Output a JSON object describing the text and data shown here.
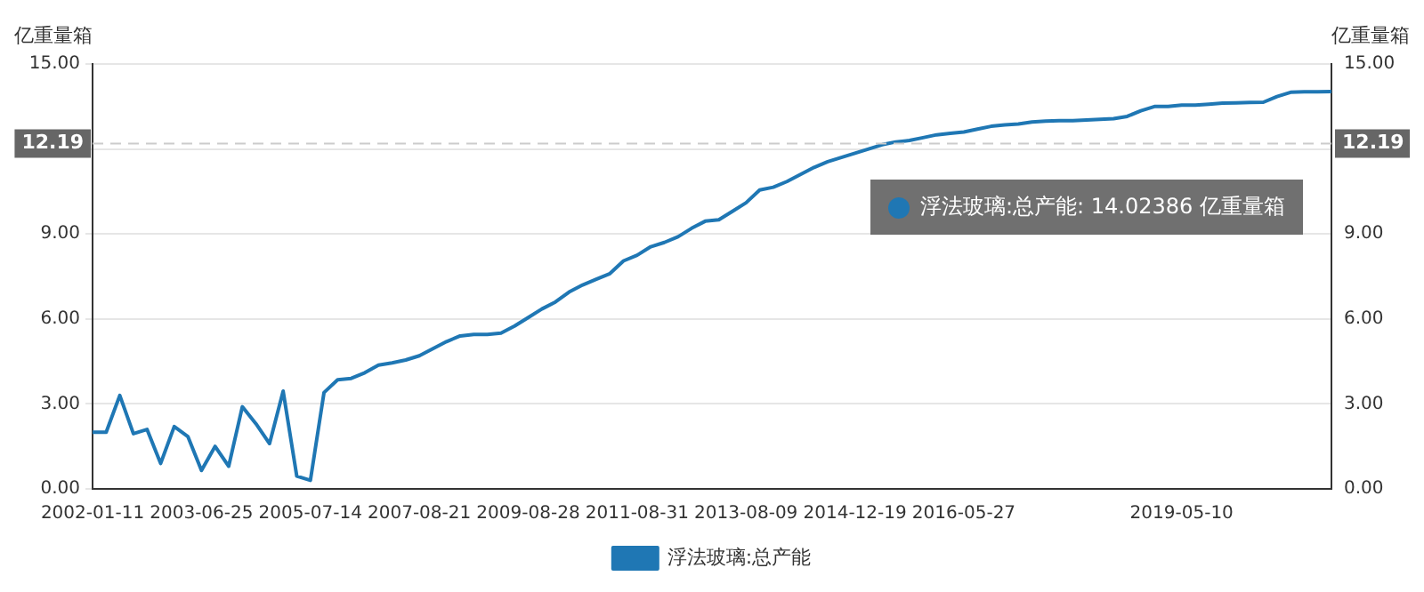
{
  "chart_data": {
    "type": "line",
    "ylabel": "亿重量箱",
    "y2label": "亿重量箱",
    "categories": [
      "2002-01-11",
      null,
      null,
      null,
      null,
      null,
      null,
      null,
      "2003-06-25",
      null,
      null,
      null,
      null,
      null,
      null,
      null,
      "2005-07-14",
      null,
      null,
      null,
      null,
      null,
      null,
      null,
      "2007-08-21",
      null,
      null,
      null,
      null,
      null,
      null,
      null,
      "2009-08-28",
      null,
      null,
      null,
      null,
      null,
      null,
      null,
      "2011-08-31",
      null,
      null,
      null,
      null,
      null,
      null,
      null,
      "2013-08-09",
      null,
      null,
      null,
      null,
      null,
      null,
      null,
      "2014-12-19",
      null,
      null,
      null,
      null,
      null,
      null,
      null,
      "2016-05-27",
      null,
      null,
      null,
      null,
      null,
      null,
      null,
      null,
      null,
      null,
      null,
      null,
      null,
      null,
      null,
      "2019-05-10",
      null,
      null,
      null,
      null,
      null,
      null,
      null,
      null,
      null,
      null,
      null
    ],
    "series": [
      {
        "name": "浮法玻璃:总产能",
        "color": "#1f77b4",
        "values": [
          2.0,
          2.0,
          3.3,
          1.95,
          2.1,
          0.9,
          2.2,
          1.85,
          0.65,
          1.5,
          0.8,
          2.9,
          2.3,
          1.6,
          3.45,
          0.45,
          0.3,
          3.4,
          3.85,
          3.9,
          4.1,
          4.37,
          4.45,
          4.55,
          4.7,
          4.95,
          5.2,
          5.4,
          5.45,
          5.45,
          5.5,
          5.75,
          6.05,
          6.35,
          6.6,
          6.95,
          7.2,
          7.4,
          7.6,
          8.05,
          8.25,
          8.55,
          8.7,
          8.9,
          9.2,
          9.45,
          9.5,
          9.8,
          10.1,
          10.55,
          10.65,
          10.85,
          11.1,
          11.35,
          11.55,
          11.7,
          11.85,
          12.0,
          12.15,
          12.25,
          12.3,
          12.4,
          12.5,
          12.55,
          12.6,
          12.7,
          12.8,
          12.85,
          12.88,
          12.95,
          12.98,
          13.0,
          13.0,
          13.02,
          13.05,
          13.07,
          13.15,
          13.35,
          13.5,
          13.5,
          13.55,
          13.55,
          13.58,
          13.62,
          13.63,
          13.64,
          13.65,
          13.85,
          14.0,
          14.02,
          14.02,
          14.02386
        ]
      }
    ],
    "ylim": [
      0,
      15
    ],
    "yticks": [
      {
        "value": 0,
        "label": "0.00"
      },
      {
        "value": 3,
        "label": "3.00"
      },
      {
        "value": 6,
        "label": "6.00"
      },
      {
        "value": 9,
        "label": "9.00"
      },
      {
        "value": 12,
        "label": null
      },
      {
        "value": 15,
        "label": "15.00"
      }
    ],
    "y2lim": [
      0,
      15
    ],
    "y2ticks": [
      {
        "value": 0,
        "label": "0.00"
      },
      {
        "value": 3,
        "label": "3.00"
      },
      {
        "value": 6,
        "label": "6.00"
      },
      {
        "value": 9,
        "label": "9.00"
      },
      {
        "value": 12,
        "label": null
      },
      {
        "value": 15,
        "label": "15.00"
      }
    ],
    "ref_lines": [
      {
        "axis": "y",
        "value": 12.19,
        "label": "12.19",
        "color": "#cccccc",
        "line_style": "dashed"
      }
    ],
    "annotations": [
      "浮法玻璃:总产能: 14.02386 亿重量箱"
    ],
    "grid": "y",
    "legend": "bottom",
    "marker": "none",
    "line_style": "solid"
  }
}
